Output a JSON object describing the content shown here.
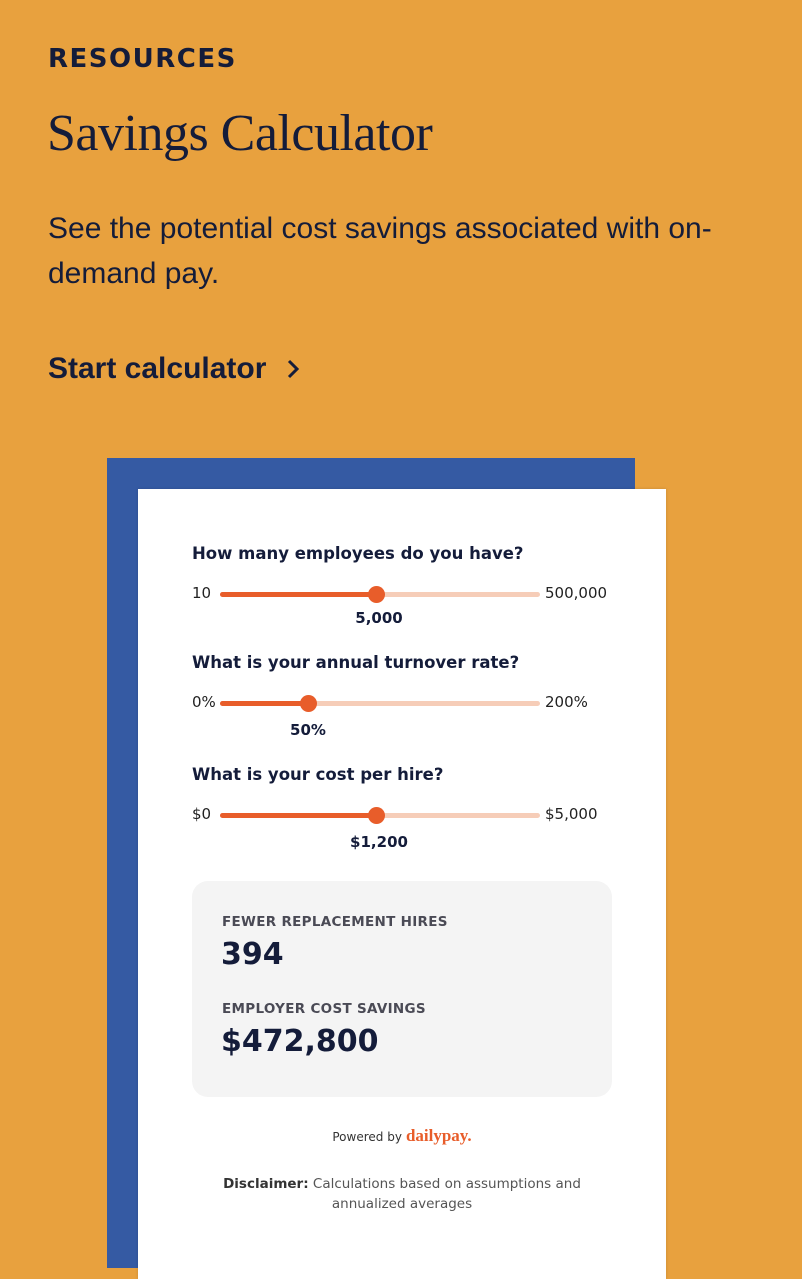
{
  "header": {
    "eyebrow": "RESOURCES",
    "title": "Savings Calculator",
    "description": "See the potential cost savings associated with on-demand pay.",
    "cta": "Start calculator"
  },
  "calculator": {
    "sliders": [
      {
        "question": "How many employees do you have?",
        "min": "10",
        "max": "500,000",
        "value": "5,000"
      },
      {
        "question": "What is your annual turnover rate?",
        "min": "0%",
        "max": "200%",
        "value": "50%"
      },
      {
        "question": "What is your cost per hire?",
        "min": "$0",
        "max": "$5,000",
        "value": "$1,200"
      }
    ],
    "results": [
      {
        "label": "FEWER REPLACEMENT HIRES",
        "value": "394"
      },
      {
        "label": "EMPLOYER COST SAVINGS",
        "value": "$472,800"
      }
    ],
    "powered_by": "Powered by",
    "brand": "dailypay.",
    "disclaimer_label": "Disclaimer:",
    "disclaimer": "Calculations based on assumptions and annualized averages"
  }
}
